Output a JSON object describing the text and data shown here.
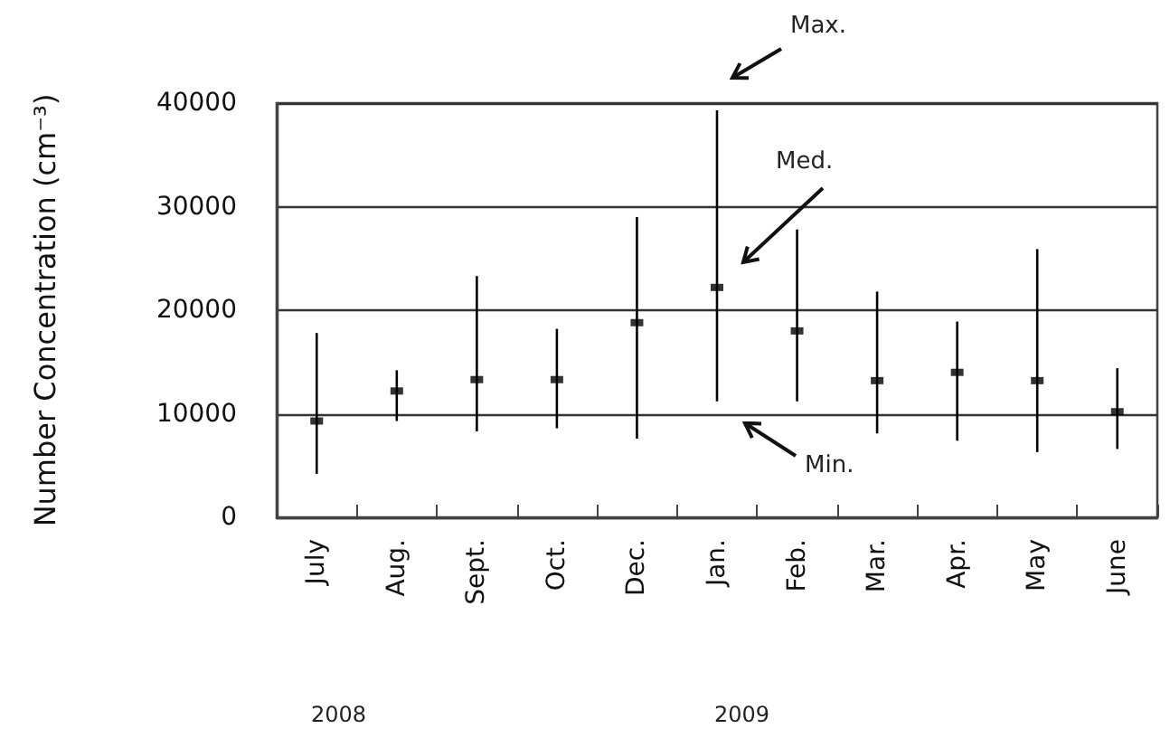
{
  "chart_data": {
    "type": "scatter",
    "ylabel": "Number Concentration (cm⁻³)",
    "categories": [
      "July",
      "Aug.",
      "Sept.",
      "Oct.",
      "Dec.",
      "Jan.",
      "Feb.",
      "Mar.",
      "Apr.",
      "May",
      "June"
    ],
    "series": [
      {
        "color": "#000000",
        "values": [
          9300,
          12200,
          13300,
          13300,
          18800,
          22200,
          18000,
          13200,
          14000,
          13200,
          10200
        ],
        "errors": [
          [
            4200,
            17800
          ],
          [
            9300,
            14200
          ],
          [
            8300,
            23300
          ],
          [
            8600,
            18200
          ],
          [
            7600,
            29000
          ],
          [
            11200,
            39300
          ],
          [
            11200,
            27800
          ],
          [
            8100,
            21800
          ],
          [
            7400,
            18900
          ],
          [
            6300,
            25900
          ],
          [
            6600,
            14400
          ]
        ]
      }
    ],
    "ylim": [
      0,
      40000
    ],
    "yticks": [
      0,
      10000,
      20000,
      30000,
      40000
    ],
    "grid": "y",
    "marker": "square",
    "annotations": [
      "Max.",
      "Med.",
      "Min.",
      "2008",
      "2009"
    ]
  }
}
